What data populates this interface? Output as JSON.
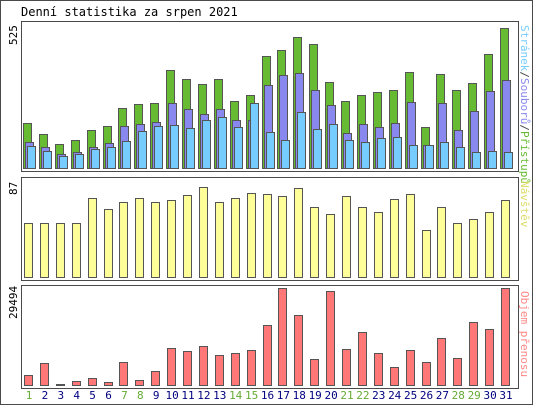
{
  "title": "Denní statistika za srpen 2021",
  "chart_data": [
    {
      "type": "bar",
      "title": "Denní statistika za srpen 2021",
      "categories": [
        "1",
        "2",
        "3",
        "4",
        "5",
        "6",
        "7",
        "8",
        "9",
        "10",
        "11",
        "12",
        "13",
        "14",
        "15",
        "16",
        "17",
        "18",
        "19",
        "20",
        "21",
        "22",
        "23",
        "24",
        "25",
        "26",
        "27",
        "28",
        "29",
        "30",
        "31"
      ],
      "weekend_days": [
        "1",
        "7",
        "8",
        "14",
        "15",
        "21",
        "22",
        "28",
        "29"
      ],
      "ymax_label": "525",
      "ylim": [
        0,
        525
      ],
      "series": [
        {
          "name": "Přístupů",
          "color": "#66bb33",
          "values": [
            163,
            126,
            90,
            104,
            140,
            155,
            217,
            232,
            236,
            354,
            321,
            303,
            320,
            244,
            263,
            404,
            424,
            472,
            448,
            311,
            243,
            265,
            276,
            282,
            345,
            150,
            339,
            283,
            306,
            410,
            504
          ]
        },
        {
          "name": "Souborů",
          "color": "#8888ee",
          "values": [
            95,
            77,
            55,
            61,
            80,
            92,
            154,
            159,
            168,
            235,
            213,
            197,
            216,
            174,
            176,
            300,
            335,
            342,
            282,
            229,
            129,
            162,
            149,
            164,
            240,
            84,
            237,
            139,
            208,
            277,
            318
          ]
        },
        {
          "name": "Stránek",
          "color": "#77ccff",
          "values": [
            81,
            63,
            45,
            54,
            70,
            77,
            101,
            135,
            152,
            157,
            147,
            176,
            187,
            151,
            237,
            132,
            104,
            203,
            143,
            161,
            103,
            97,
            109,
            115,
            86,
            87,
            95,
            78,
            62,
            64,
            59
          ]
        }
      ],
      "series_label": "Stránek/Souborů/Přístupů"
    },
    {
      "type": "bar",
      "ymax_label": "87",
      "ylim": [
        0,
        87
      ],
      "series": [
        {
          "name": "Návštěv",
          "color": "#ffff99",
          "values": [
            48,
            48,
            48,
            48,
            70,
            60,
            66,
            70,
            66,
            68,
            72,
            79,
            66,
            70,
            74,
            73,
            71,
            78,
            62,
            56,
            71,
            62,
            57,
            69,
            73,
            42,
            62,
            48,
            51,
            57,
            68
          ]
        }
      ],
      "series_label": "Návštěv"
    },
    {
      "type": "bar",
      "ymax_label": "29494",
      "ylim": [
        0,
        29494
      ],
      "series": [
        {
          "name": "Objem přenosu",
          "color": "#ff7777",
          "values": [
            3100,
            6800,
            700,
            1500,
            2500,
            1200,
            7200,
            1900,
            4400,
            11200,
            10300,
            11800,
            9200,
            9800,
            10500,
            17900,
            29000,
            21000,
            8000,
            27900,
            11000,
            16000,
            9700,
            5500,
            10500,
            7200,
            14100,
            8300,
            18800,
            16800,
            28900
          ]
        }
      ],
      "series_label": "Objem přenosu"
    }
  ],
  "colors": {
    "day_normal": "#000080",
    "day_weekend": "#66aa33",
    "label_top_stranek": "#77ccff",
    "label_top_souboru": "#8888ee",
    "label_top_pristupu": "#66bb33"
  }
}
